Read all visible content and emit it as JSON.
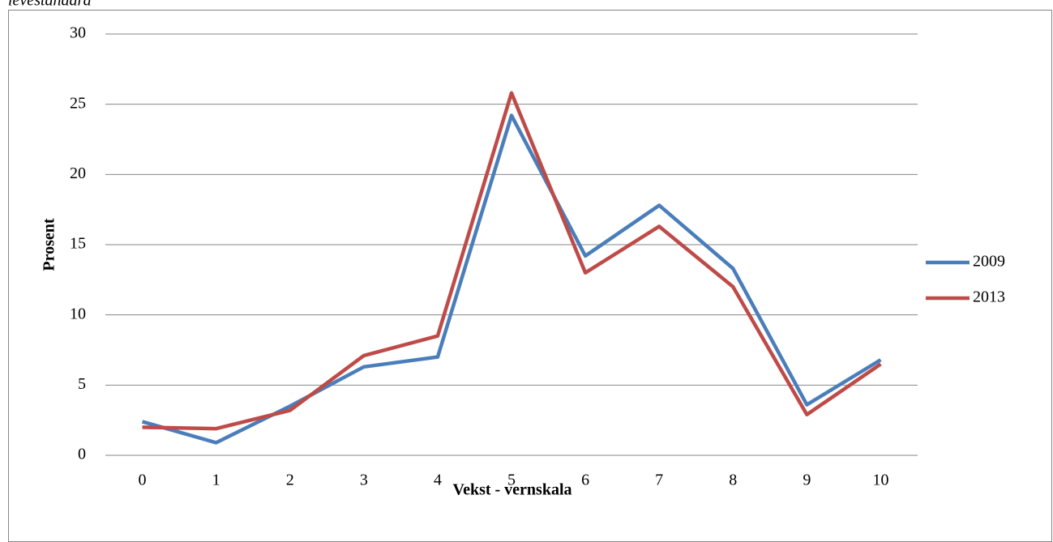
{
  "caption": "levestandard",
  "chart_data": {
    "type": "line",
    "x_label": "Vekst - vernskala",
    "y_label": "Prosent",
    "categories": [
      "0",
      "1",
      "2",
      "3",
      "4",
      "5",
      "6",
      "7",
      "8",
      "9",
      "10"
    ],
    "series": [
      {
        "name": "2009",
        "color": "#4a7ebb",
        "values": [
          2.4,
          0.9,
          3.5,
          6.3,
          7.0,
          24.2,
          14.2,
          17.8,
          13.3,
          3.6,
          6.8
        ]
      },
      {
        "name": "2013",
        "color": "#be4b48",
        "values": [
          2.0,
          1.9,
          3.2,
          7.1,
          8.5,
          25.8,
          13.0,
          16.3,
          12.0,
          2.9,
          6.5
        ]
      }
    ],
    "ylim": [
      0,
      30
    ],
    "yticks": [
      0,
      5,
      10,
      15,
      20,
      25,
      30
    ],
    "grid": true,
    "legend": "right"
  }
}
